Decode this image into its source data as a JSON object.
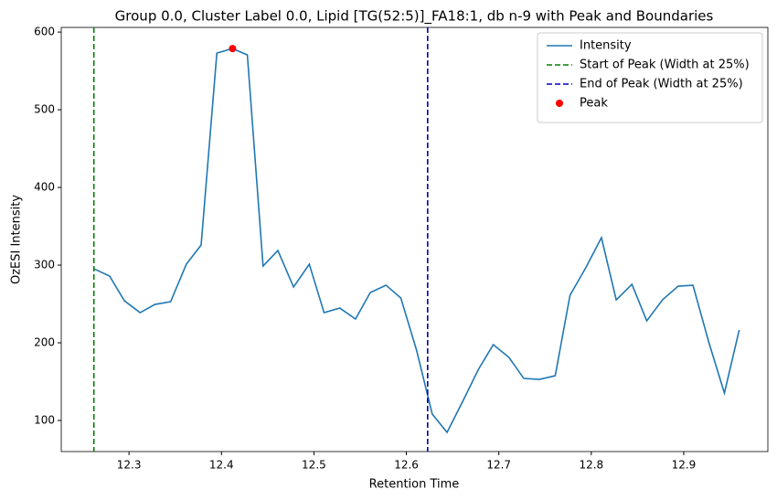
{
  "chart_data": {
    "type": "line",
    "title": "Group 0.0, Cluster Label 0.0, Lipid [TG(52:5)]_FA18:1, db n-9 with Peak and Boundaries",
    "x_label": "Retention Time",
    "y_label": "OzESI Intensity",
    "xlim": [
      12.2267,
      12.991
    ],
    "ylim": [
      60,
      606
    ],
    "xticks": [
      12.3,
      12.4,
      12.5,
      12.6,
      12.7,
      12.8,
      12.9
    ],
    "yticks": [
      100,
      200,
      300,
      400,
      500,
      600
    ],
    "legend": "upper right",
    "series": [
      {
        "name": "Intensity",
        "type": "line",
        "color": "#1f77b4",
        "x": [
          12.262,
          12.279,
          12.295,
          12.312,
          12.328,
          12.345,
          12.362,
          12.378,
          12.395,
          12.412,
          12.428,
          12.445,
          12.461,
          12.478,
          12.495,
          12.511,
          12.528,
          12.545,
          12.561,
          12.578,
          12.594,
          12.611,
          12.628,
          12.644,
          12.661,
          12.678,
          12.694,
          12.711,
          12.727,
          12.744,
          12.761,
          12.777,
          12.794,
          12.811,
          12.827,
          12.844,
          12.86,
          12.877,
          12.894,
          12.91,
          12.927,
          12.944,
          12.96
        ],
        "values": [
          295.3,
          285.9,
          254.1,
          238.8,
          249.4,
          252.9,
          301.2,
          325.9,
          572.9,
          578.8,
          570.6,
          298.8,
          318.8,
          271.8,
          301.2,
          238.8,
          244.7,
          230.6,
          264.7,
          274.1,
          257.6,
          190.6,
          108.2,
          84.7,
          124.7,
          165.9,
          197.6,
          181.2,
          154.1,
          152.9,
          157.6,
          261.2,
          296.5,
          335.3,
          255.3,
          275.3,
          228.2,
          255.3,
          272.9,
          274.1,
          201.2,
          135.3,
          216.5
        ]
      },
      {
        "name": "Peak",
        "type": "scatter",
        "color": "#ff0000",
        "x": [
          12.412
        ],
        "values": [
          578.8
        ]
      }
    ],
    "vlines": [
      {
        "name": "Start of Peak (Width at 25%)",
        "x": 12.262,
        "color": "#008000",
        "style": "dashed"
      },
      {
        "name": "End of Peak (Width at 25%)",
        "x": 12.623,
        "color": "#0000bb",
        "style": "dashed"
      }
    ]
  }
}
